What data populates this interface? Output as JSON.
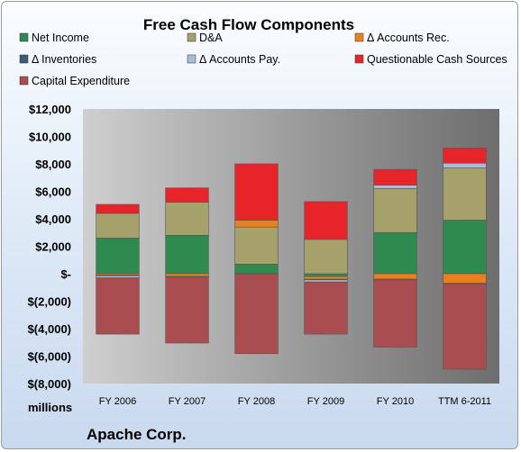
{
  "chart_data": {
    "type": "bar",
    "stacked": true,
    "title": "Free Cash Flow Components",
    "unit_label": "millions",
    "footer": "Apache Corp.",
    "categories": [
      "FY 2006",
      "FY 2007",
      "FY 2008",
      "FY 2009",
      "FY 2010",
      "TTM 6-2011"
    ],
    "ylim": [
      -8000,
      12000
    ],
    "yticks": [
      12000,
      10000,
      8000,
      6000,
      4000,
      2000,
      0,
      -2000,
      -4000,
      -6000,
      -8000
    ],
    "ytick_labels": [
      "$12,000",
      "$10,000",
      "$8,000",
      "$6,000",
      "$4,000",
      "$2,000",
      "$-",
      "$(2,000)",
      "$(4,000)",
      "$(6,000)",
      "$(8,000)"
    ],
    "grid": false,
    "legend_position": "top",
    "series": [
      {
        "name": "Net Income",
        "color": "#2e8a4f",
        "values": [
          2600,
          2800,
          700,
          -200,
          3000,
          3900
        ]
      },
      {
        "name": "D&A",
        "color": "#a6a06a",
        "values": [
          1800,
          2400,
          2700,
          2500,
          3200,
          3800
        ]
      },
      {
        "name": "Δ Accounts Rec.",
        "color": "#e8801e",
        "values": [
          -100,
          -200,
          500,
          -200,
          -400,
          -700
        ]
      },
      {
        "name": "Δ Inventories",
        "color": "#3b5b78",
        "values": [
          -50,
          -50,
          -20,
          -50,
          -50,
          -50
        ]
      },
      {
        "name": "Δ Accounts Pay.",
        "color": "#a9bcd6",
        "values": [
          -150,
          0,
          0,
          -150,
          250,
          350
        ]
      },
      {
        "name": "Questionable Cash Sources",
        "color": "#e8242b",
        "values": [
          650,
          1050,
          4100,
          2750,
          1150,
          1100
        ]
      },
      {
        "name": "Capital Expenditure",
        "color": "#a94d51",
        "values": [
          -4100,
          -4800,
          -5800,
          -3800,
          -4900,
          -6200
        ]
      }
    ]
  }
}
